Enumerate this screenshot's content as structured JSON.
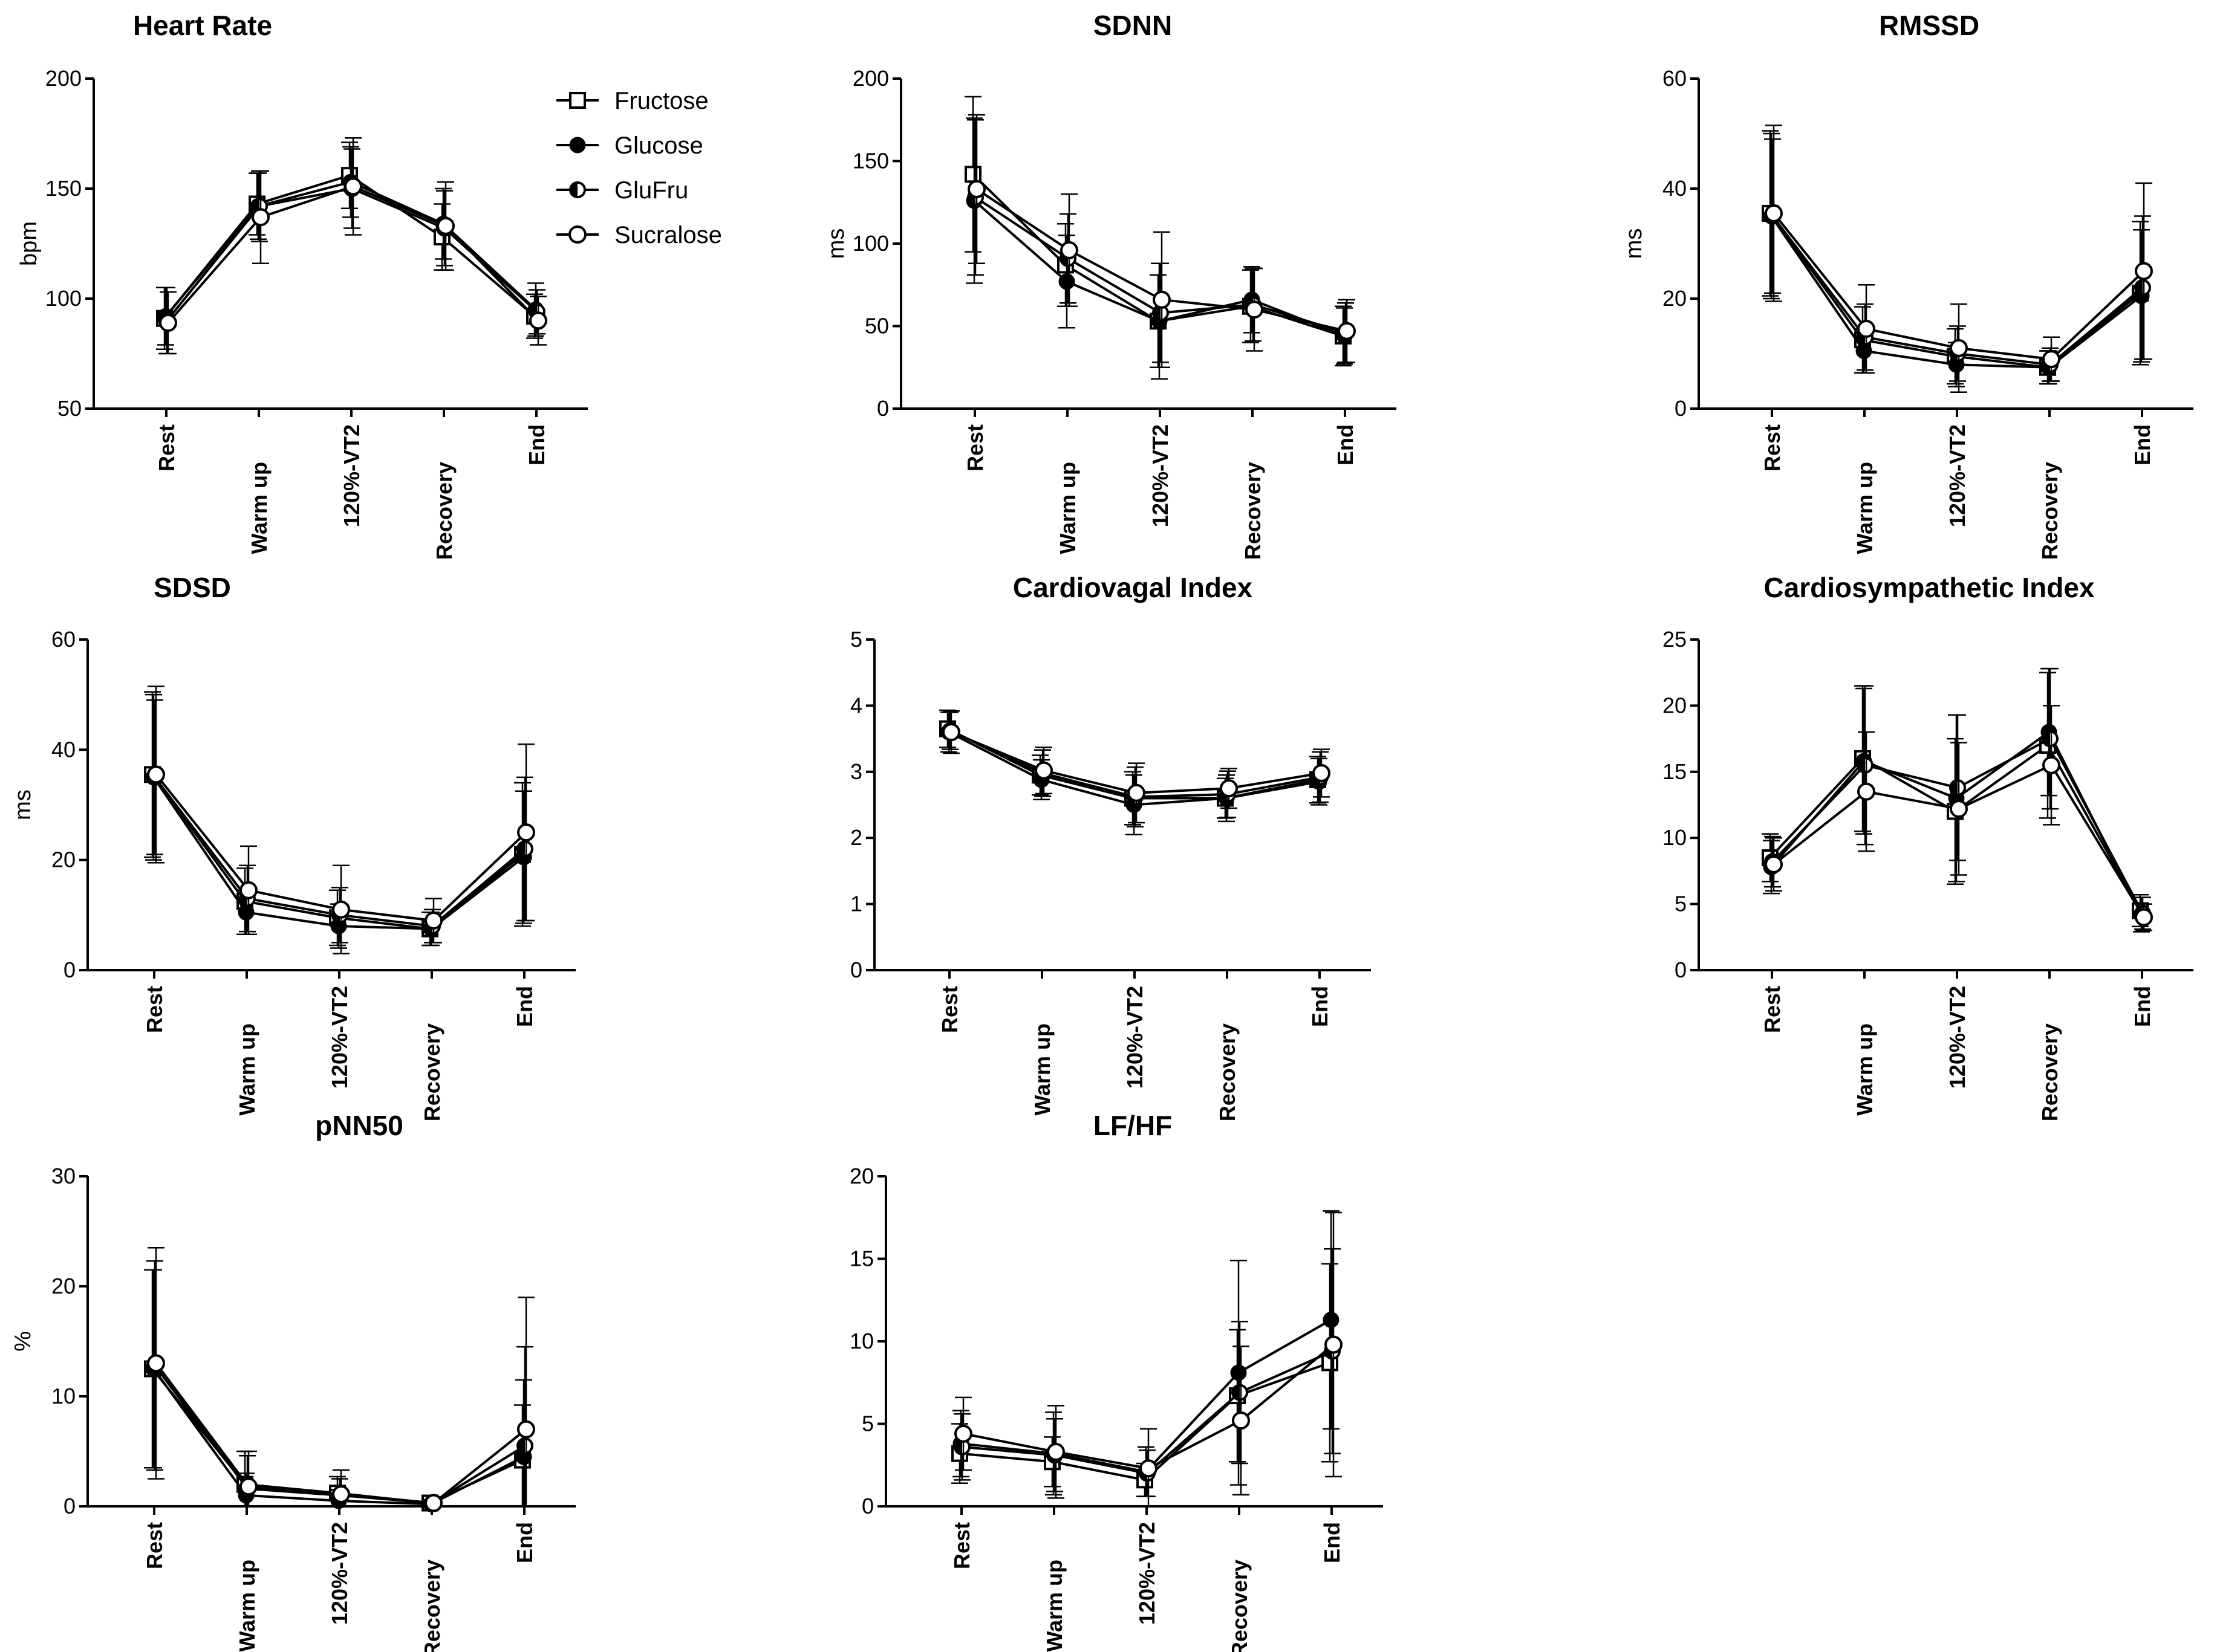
{
  "chart_data": [
    {
      "type": "line",
      "title": "Heart  Rate",
      "ylabel": "bpm",
      "ylim": [
        50,
        200
      ],
      "yticks": [
        50,
        100,
        150,
        200
      ],
      "categories": [
        "Rest",
        "Warm up",
        "120%-VT2",
        "Recovery",
        "End"
      ],
      "series": [
        {
          "name": "Fructose",
          "values": [
            91,
            143,
            156,
            128,
            92
          ],
          "err": [
            14,
            14,
            15,
            15,
            10
          ]
        },
        {
          "name": "Glucose",
          "values": [
            92,
            142,
            153,
            134,
            95
          ],
          "err": [
            13,
            15,
            16,
            16,
            12
          ]
        },
        {
          "name": "GluFru",
          "values": [
            90,
            142,
            150,
            132,
            94
          ],
          "err": [
            15,
            16,
            18,
            17,
            10
          ]
        },
        {
          "name": "Sucralose",
          "values": [
            89,
            137,
            151,
            133,
            90
          ],
          "err": [
            14,
            21,
            22,
            20,
            11
          ]
        }
      ]
    },
    {
      "type": "line",
      "title": "SDNN",
      "ylabel": "ms",
      "ylim": [
        0,
        200
      ],
      "yticks": [
        0,
        50,
        100,
        150,
        200
      ],
      "categories": [
        "Rest",
        "Warm up",
        "120%-VT2",
        "Recovery",
        "End"
      ],
      "series": [
        {
          "name": "Fructose",
          "values": [
            142,
            87,
            53,
            62,
            44
          ],
          "err": [
            47,
            25,
            28,
            22,
            18
          ]
        },
        {
          "name": "Glucose",
          "values": [
            126,
            77,
            53,
            66,
            44
          ],
          "err": [
            50,
            28,
            35,
            20,
            17
          ]
        },
        {
          "name": "GluFru",
          "values": [
            128,
            91,
            58,
            63,
            46
          ],
          "err": [
            47,
            27,
            30,
            22,
            18
          ]
        },
        {
          "name": "Sucralose",
          "values": [
            133,
            96,
            66,
            60,
            47
          ],
          "err": [
            45,
            34,
            41,
            25,
            19
          ]
        }
      ]
    },
    {
      "type": "line",
      "title": "RMSSD",
      "ylabel": "ms",
      "ylim": [
        0,
        60
      ],
      "yticks": [
        0,
        20,
        40,
        60
      ],
      "categories": [
        "Rest",
        "Warm up",
        "120%-VT2",
        "Recovery",
        "End"
      ],
      "series": [
        {
          "name": "Fructose",
          "values": [
            35.5,
            12.5,
            9.5,
            7.5,
            21
          ],
          "err": [
            15,
            6,
            5,
            3,
            13
          ]
        },
        {
          "name": "Glucose",
          "values": [
            35,
            10.5,
            8,
            7.5,
            20.5
          ],
          "err": [
            15,
            4,
            4,
            3,
            12
          ]
        },
        {
          "name": "GluFru",
          "values": [
            35,
            13,
            10,
            8,
            22
          ],
          "err": [
            14,
            6,
            5,
            3,
            13
          ]
        },
        {
          "name": "Sucralose",
          "values": [
            35.5,
            14.5,
            11,
            9,
            25
          ],
          "err": [
            16,
            8,
            8,
            4,
            16
          ]
        }
      ]
    },
    {
      "type": "line",
      "title": "SDSD",
      "ylabel": "ms",
      "ylim": [
        0,
        60
      ],
      "yticks": [
        0,
        20,
        40,
        60
      ],
      "categories": [
        "Rest",
        "Warm up",
        "120%-VT2",
        "Recovery",
        "End"
      ],
      "series": [
        {
          "name": "Fructose",
          "values": [
            35.5,
            12.5,
            9.5,
            7.5,
            21
          ],
          "err": [
            15,
            6,
            5,
            3,
            13
          ]
        },
        {
          "name": "Glucose",
          "values": [
            35,
            10.5,
            8,
            7.5,
            20.5
          ],
          "err": [
            15,
            4,
            4,
            3,
            12
          ]
        },
        {
          "name": "GluFru",
          "values": [
            35,
            13,
            10,
            8,
            22
          ],
          "err": [
            14,
            6,
            5,
            3,
            13
          ]
        },
        {
          "name": "Sucralose",
          "values": [
            35.5,
            14.5,
            11,
            9,
            25
          ],
          "err": [
            16,
            8,
            8,
            4,
            16
          ]
        }
      ]
    },
    {
      "type": "line",
      "title": "Cardiovagal Index",
      "ylabel": "",
      "ylim": [
        0,
        5
      ],
      "yticks": [
        0,
        1,
        2,
        3,
        4,
        5
      ],
      "categories": [
        "Rest",
        "Warm up",
        "120%-VT2",
        "Recovery",
        "End"
      ],
      "series": [
        {
          "name": "Fructose",
          "values": [
            3.65,
            2.95,
            2.6,
            2.6,
            2.88
          ],
          "err": [
            0.28,
            0.3,
            0.4,
            0.3,
            0.35
          ]
        },
        {
          "name": "Glucose",
          "values": [
            3.6,
            2.88,
            2.5,
            2.6,
            2.85
          ],
          "err": [
            0.3,
            0.3,
            0.45,
            0.35,
            0.35
          ]
        },
        {
          "name": "GluFru",
          "values": [
            3.62,
            2.98,
            2.62,
            2.66,
            2.92
          ],
          "err": [
            0.28,
            0.35,
            0.45,
            0.35,
            0.38
          ]
        },
        {
          "name": "Sucralose",
          "values": [
            3.6,
            3.02,
            2.68,
            2.75,
            2.98
          ],
          "err": [
            0.32,
            0.35,
            0.45,
            0.3,
            0.36
          ]
        }
      ]
    },
    {
      "type": "line",
      "title": "Cardiosympathetic  Index",
      "ylabel": "",
      "ylim": [
        0,
        25
      ],
      "yticks": [
        0,
        5,
        10,
        15,
        20,
        25
      ],
      "categories": [
        "Rest",
        "Warm up",
        "120%-VT2",
        "Recovery",
        "End"
      ],
      "series": [
        {
          "name": "Fructose",
          "values": [
            8.5,
            16,
            12,
            17,
            4.5
          ],
          "err": [
            1.8,
            5.5,
            5.5,
            5.5,
            1.2
          ]
        },
        {
          "name": "Glucose",
          "values": [
            7.8,
            15.8,
            13,
            18,
            4.2
          ],
          "err": [
            2,
            5.5,
            6.3,
            4.8,
            1.3
          ]
        },
        {
          "name": "GluFru",
          "values": [
            8.2,
            15.5,
            13.8,
            17.5,
            4.3
          ],
          "err": [
            1.9,
            6,
            5.5,
            5.3,
            1.2
          ]
        },
        {
          "name": "Sucralose",
          "values": [
            8,
            13.5,
            12.2,
            15.5,
            4
          ],
          "err": [
            2,
            4.5,
            5,
            4.5,
            1
          ]
        }
      ]
    },
    {
      "type": "line",
      "title": "pNN50",
      "ylabel": "%",
      "ylim": [
        0,
        30
      ],
      "yticks": [
        0,
        10,
        20,
        30
      ],
      "categories": [
        "Rest",
        "Warm up",
        "120%-VT2",
        "Recovery",
        "End"
      ],
      "series": [
        {
          "name": "Fructose",
          "values": [
            12.5,
            2,
            1.2,
            0.3,
            4.2
          ],
          "err": [
            9,
            3,
            1.5,
            0.3,
            5
          ]
        },
        {
          "name": "Glucose",
          "values": [
            12.5,
            1,
            0.5,
            0.2,
            4.5
          ],
          "err": [
            9,
            2,
            1,
            0.2,
            7
          ]
        },
        {
          "name": "GluFru",
          "values": [
            12.8,
            1.6,
            1,
            0.3,
            5.5
          ],
          "err": [
            9.5,
            3,
            1.5,
            0.3,
            9
          ]
        },
        {
          "name": "Sucralose",
          "values": [
            13,
            1.8,
            1.1,
            0.3,
            7
          ],
          "err": [
            10.5,
            3.2,
            2.2,
            0.4,
            12
          ]
        }
      ]
    },
    {
      "type": "line",
      "title": "LF/HF",
      "ylabel": "",
      "ylim": [
        0,
        20
      ],
      "yticks": [
        0,
        5,
        10,
        15,
        20
      ],
      "categories": [
        "Rest",
        "Warm up",
        "120%-VT2",
        "Recovery",
        "End"
      ],
      "series": [
        {
          "name": "Fructose",
          "values": [
            3.2,
            2.7,
            1.6,
            6.7,
            8.7
          ],
          "err": [
            1.8,
            1.5,
            1,
            4,
            6
          ]
        },
        {
          "name": "Glucose",
          "values": [
            3.8,
            3.2,
            2.1,
            8.1,
            11.3
          ],
          "err": [
            2,
            2.5,
            1.5,
            6.8,
            6.6
          ]
        },
        {
          "name": "GluFru",
          "values": [
            3.6,
            3.1,
            2,
            6.9,
            9.4
          ],
          "err": [
            2,
            2.2,
            1.4,
            4.3,
            6.2
          ]
        },
        {
          "name": "Sucralose",
          "values": [
            4.4,
            3.3,
            2.3,
            5.2,
            9.8
          ],
          "err": [
            2.2,
            2.8,
            2.4,
            4.5,
            8
          ]
        }
      ]
    }
  ],
  "legend": [
    {
      "label": "Fructose",
      "marker": "open-square"
    },
    {
      "label": "Glucose",
      "marker": "filled-circle"
    },
    {
      "label": "GluFru",
      "marker": "half-filled-circle"
    },
    {
      "label": "Sucralose",
      "marker": "open-circle"
    }
  ]
}
